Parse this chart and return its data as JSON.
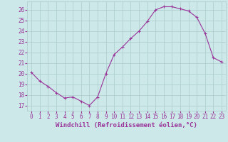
{
  "x": [
    0,
    1,
    2,
    3,
    4,
    5,
    6,
    7,
    8,
    9,
    10,
    11,
    12,
    13,
    14,
    15,
    16,
    17,
    18,
    19,
    20,
    21,
    22,
    23
  ],
  "y": [
    20.1,
    19.3,
    18.8,
    18.2,
    17.7,
    17.8,
    17.4,
    17.0,
    17.8,
    20.0,
    21.8,
    22.5,
    23.3,
    24.0,
    24.9,
    26.0,
    26.3,
    26.3,
    26.1,
    25.9,
    25.3,
    23.8,
    21.5,
    21.1
  ],
  "line_color": "#993399",
  "marker": "+",
  "bg_color": "#cce8e8",
  "grid_color": "#aacccc",
  "xlabel": "Windchill (Refroidissement éolien,°C)",
  "xlabel_color": "#993399",
  "yticks": [
    17,
    18,
    19,
    20,
    21,
    22,
    23,
    24,
    25,
    26
  ],
  "xlim": [
    -0.5,
    23.5
  ],
  "ylim": [
    16.5,
    26.8
  ],
  "tick_color": "#993399",
  "tick_fontsize": 5.5,
  "xlabel_fontsize": 6.5,
  "marker_size": 3,
  "linewidth": 0.8
}
